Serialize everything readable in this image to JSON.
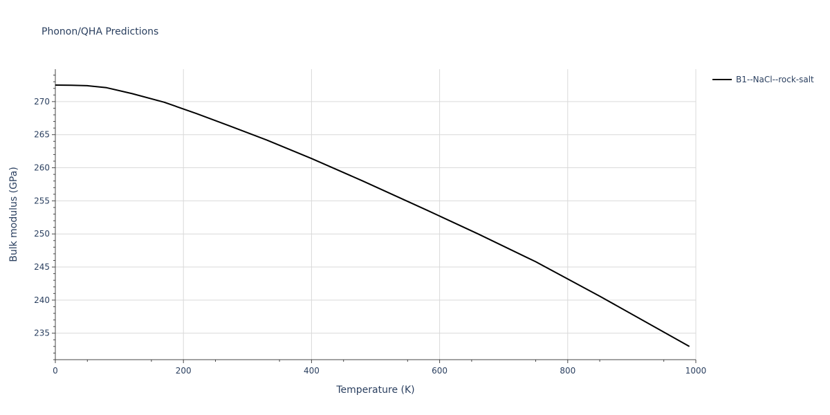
{
  "chart_data": {
    "type": "line",
    "title": "Phonon/QHA Predictions",
    "xlabel": "Temperature (K)",
    "ylabel": "Bulk modulus (GPa)",
    "xlim": [
      0,
      1000
    ],
    "ylim": [
      231,
      274.9
    ],
    "x_ticks": [
      0,
      200,
      400,
      600,
      800,
      1000
    ],
    "y_ticks": [
      235,
      240,
      245,
      250,
      255,
      260,
      265,
      270
    ],
    "grid": true,
    "legend_position": "top-right",
    "series": [
      {
        "name": "B1--NaCl--rock-salt",
        "color": "#000000",
        "x": [
          0,
          25,
          50,
          80,
          120,
          170,
          220,
          270,
          330,
          400,
          480,
          580,
          660,
          750,
          850,
          990
        ],
        "y": [
          272.5,
          272.48,
          272.4,
          272.1,
          271.2,
          269.9,
          268.2,
          266.4,
          264.2,
          261.4,
          258.0,
          253.6,
          250.0,
          245.8,
          240.6,
          233.0
        ]
      }
    ]
  }
}
